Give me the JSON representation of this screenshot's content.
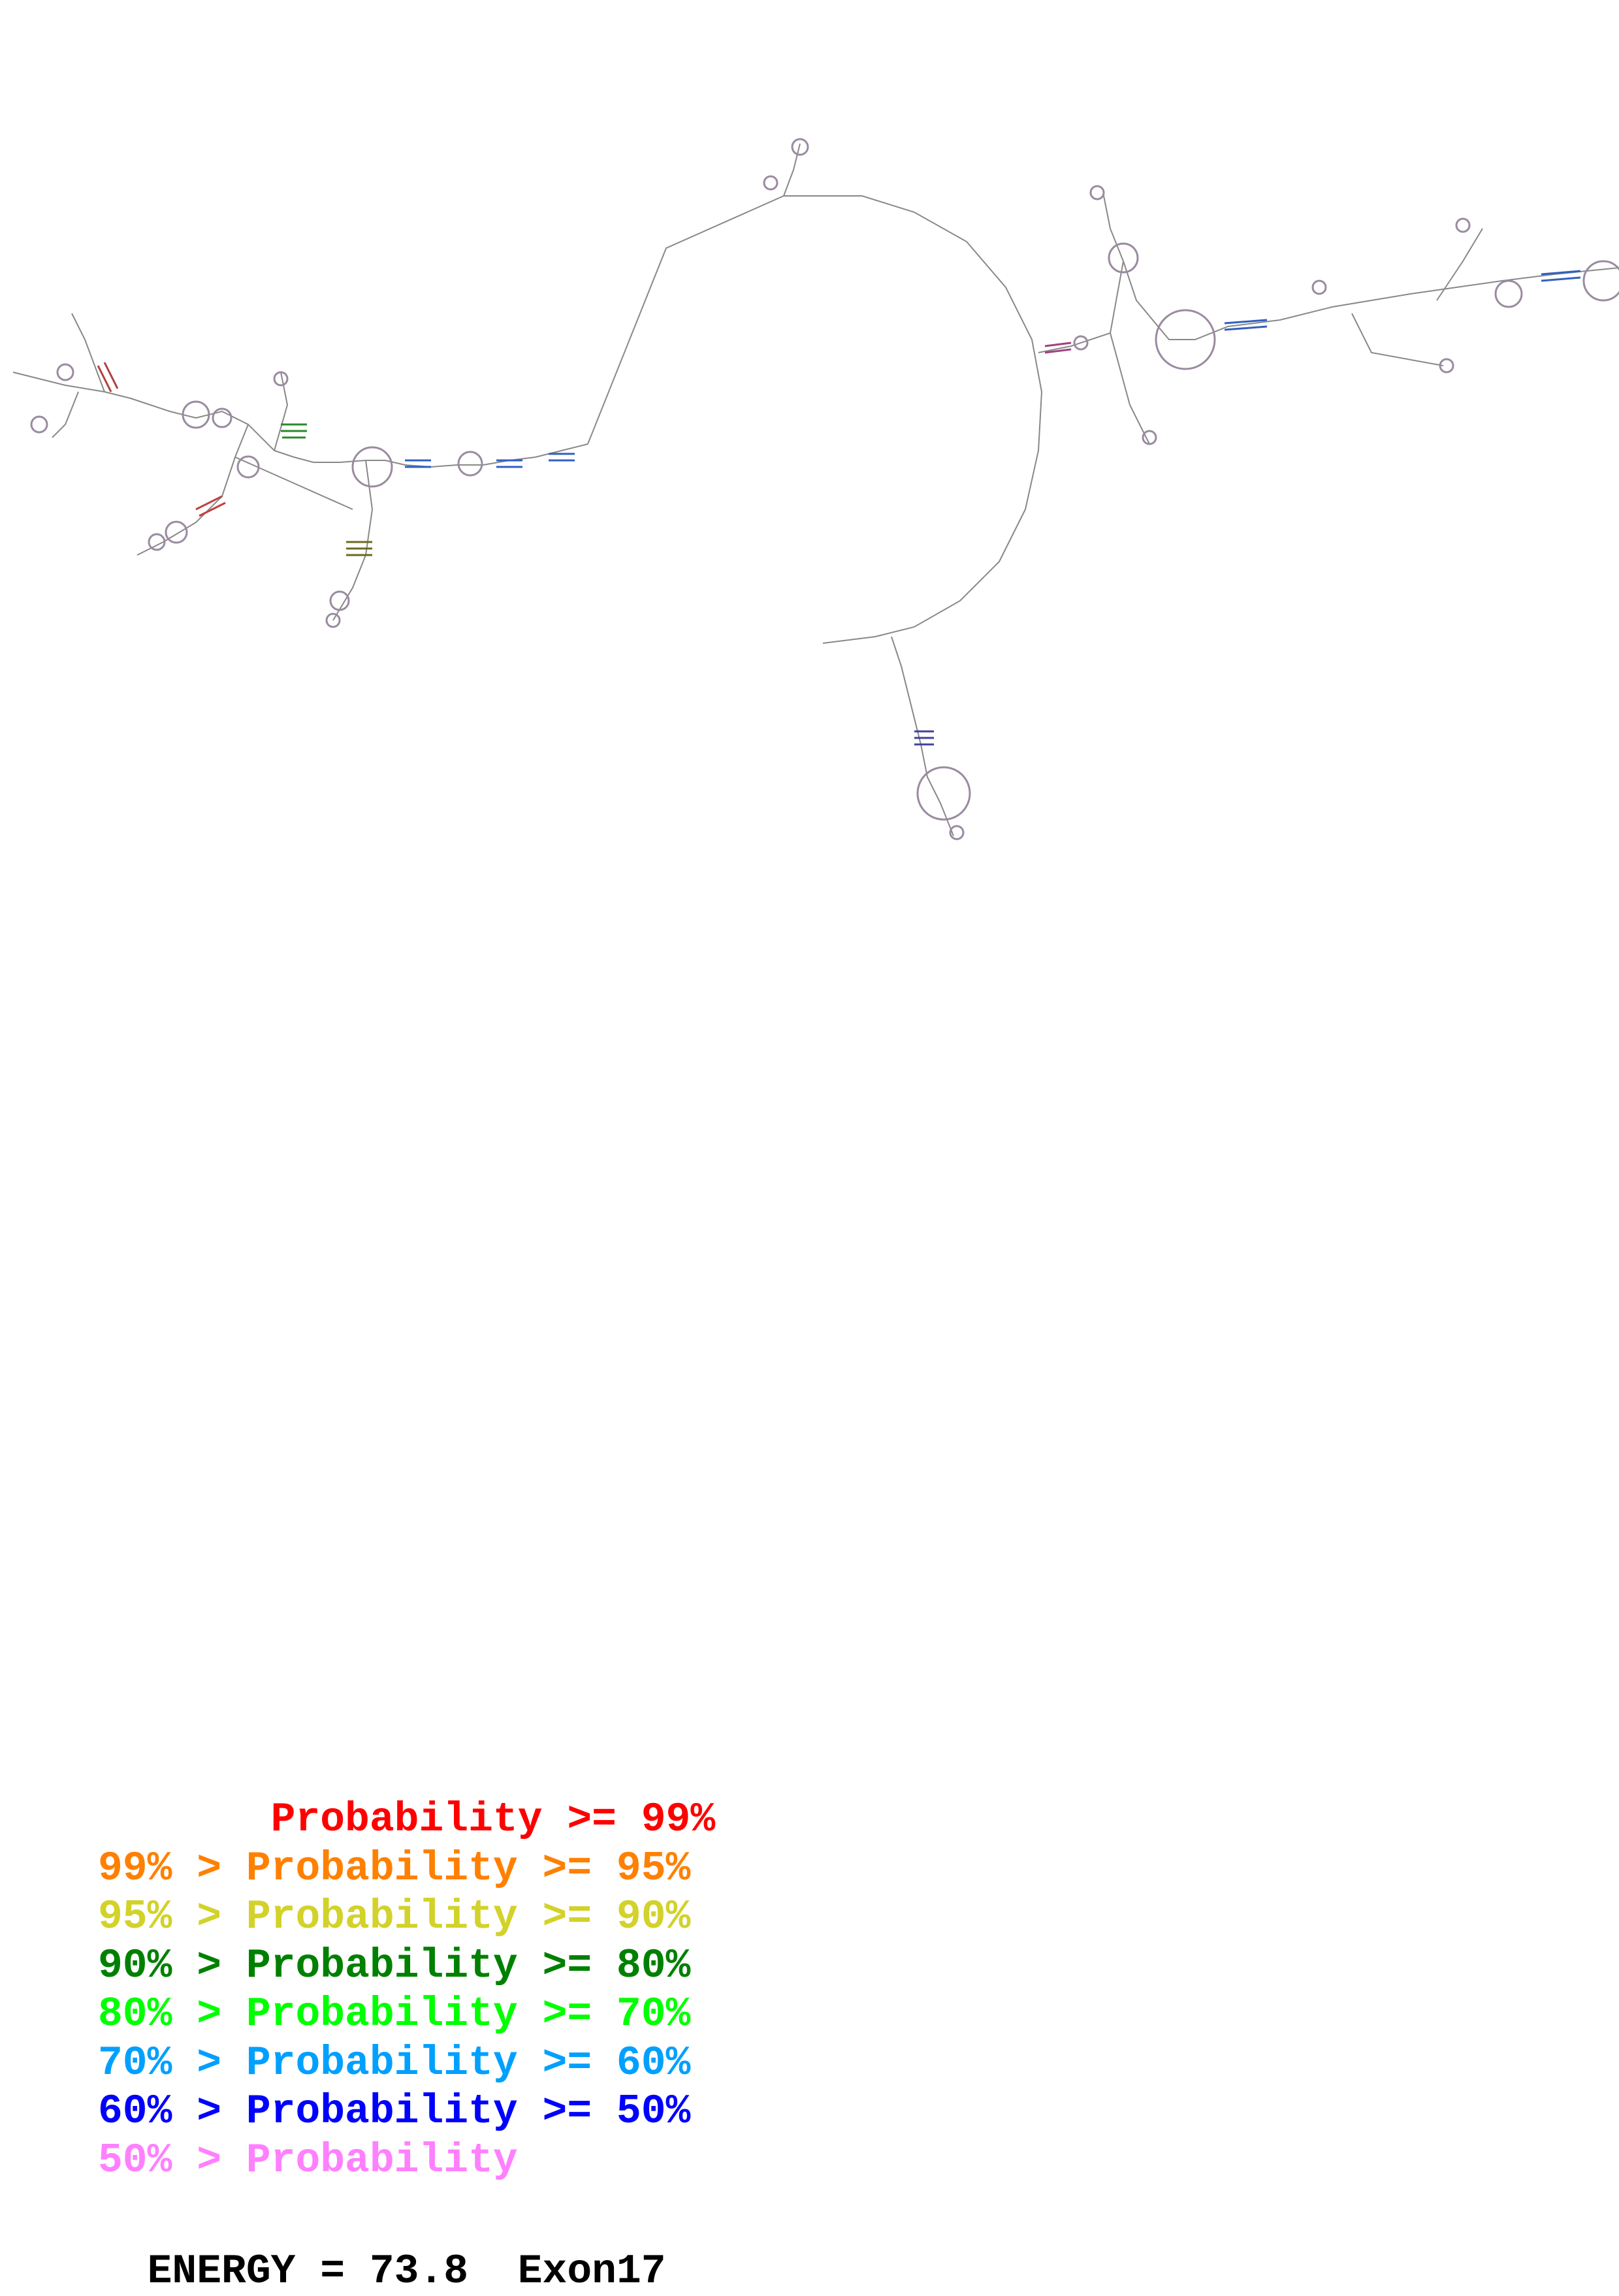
{
  "legend": {
    "rows": [
      {
        "text": "       Probability >= 99%",
        "color": "#ff0000"
      },
      {
        "text": "99% > Probability >= 95%",
        "color": "#ff8000"
      },
      {
        "text": "95% > Probability >= 90%",
        "color": "#d2d22a"
      },
      {
        "text": "90% > Probability >= 80%",
        "color": "#008000"
      },
      {
        "text": "80% > Probability >= 70%",
        "color": "#00ff00"
      },
      {
        "text": "70% > Probability >= 60%",
        "color": "#00a0ff"
      },
      {
        "text": "60% > Probability >= 50%",
        "color": "#0000ff"
      },
      {
        "text": "50% > Probability",
        "color": "#ff80ff"
      }
    ]
  },
  "footer": {
    "energy_label": "ENERGY = 73.8",
    "name": "Exon17"
  },
  "colors": {
    "backbone": "#808080",
    "nucleotide": "#9a9a9a"
  }
}
